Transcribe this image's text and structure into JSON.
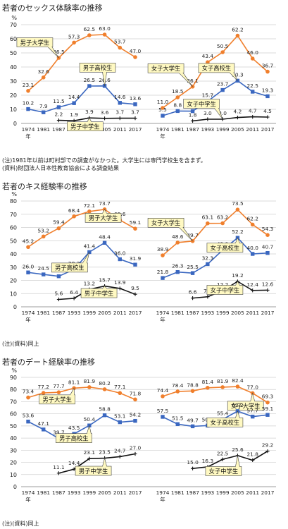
{
  "page": {
    "titles": [
      "若者のセックス体験率の推移",
      "若者のキス経験率の推移",
      "若者のデート経験率の推移"
    ],
    "notes": [
      [
        "(注)1981年以前は町村部での調査がなかった。大学生には専門学校生を含まず。",
        "(資料)財団法人日本性教育協会による調査結果"
      ],
      [
        "(注)(資料)同上"
      ],
      [
        "(注)(資料)同上"
      ]
    ]
  },
  "chart_data": [
    {
      "type": "line",
      "title": "若者のセックス体験率の推移",
      "unit": "%",
      "x_suffix": "年",
      "ylim": [
        0,
        70
      ],
      "yticks": [
        0,
        10,
        20,
        30,
        40,
        50,
        60,
        70
      ],
      "x": [
        "1974",
        "1981",
        "1987",
        "1993",
        "1999",
        "2005",
        "2011",
        "2017"
      ],
      "panels": [
        {
          "series": [
            {
              "name": "男子大学生",
              "color": "#f07f2c",
              "marker": "circle",
              "values": [
                23.1,
                32.6,
                46.5,
                57.3,
                62.5,
                63.0,
                53.7,
                47.0
              ]
            },
            {
              "name": "男子高校生",
              "color": "#3a67c0",
              "marker": "square",
              "values": [
                10.2,
                7.9,
                11.5,
                14.4,
                26.5,
                26.6,
                14.6,
                13.6
              ]
            },
            {
              "name": "男子中学生",
              "color": "#111111",
              "marker": "plus",
              "values": [
                null,
                null,
                2.2,
                1.9,
                3.9,
                3.6,
                3.7,
                3.7
              ]
            }
          ]
        },
        {
          "series": [
            {
              "name": "女子大学生",
              "color": "#f07f2c",
              "marker": "circle",
              "values": [
                11.0,
                18.5,
                26.1,
                43.4,
                50.5,
                62.2,
                46.0,
                36.7
              ]
            },
            {
              "name": "女子高校生",
              "color": "#3a67c0",
              "marker": "square",
              "values": [
                5.5,
                8.8,
                8.7,
                15.7,
                23.7,
                30.3,
                22.5,
                19.3
              ]
            },
            {
              "name": "女子中学生",
              "color": "#111111",
              "marker": "plus",
              "values": [
                null,
                null,
                1.8,
                3.0,
                3.0,
                4.2,
                4.7,
                4.5
              ]
            }
          ]
        }
      ]
    },
    {
      "type": "line",
      "title": "若者のキス経験率の推移",
      "unit": "%",
      "x_suffix": "年",
      "ylim": [
        0,
        80
      ],
      "yticks": [
        0,
        10,
        20,
        30,
        40,
        50,
        60,
        70,
        80
      ],
      "x": [
        "1974",
        "1981",
        "1987",
        "1993",
        "1999",
        "2005",
        "2011",
        "2017"
      ],
      "panels": [
        {
          "series": [
            {
              "name": "男子大学生",
              "color": "#f07f2c",
              "marker": "circle",
              "values": [
                45.2,
                53.2,
                59.4,
                68.4,
                72.1,
                73.7,
                65.6,
                59.1
              ]
            },
            {
              "name": "男子高校生",
              "color": "#3a67c0",
              "marker": "square",
              "values": [
                26.0,
                24.5,
                23.1,
                28.3,
                41.4,
                48.4,
                36.0,
                31.9
              ]
            },
            {
              "name": "男子中学生",
              "color": "#111111",
              "marker": "plus",
              "values": [
                null,
                null,
                5.6,
                6.4,
                13.2,
                15.7,
                13.9,
                9.5
              ]
            }
          ]
        },
        {
          "series": [
            {
              "name": "女子大学生",
              "color": "#f07f2c",
              "marker": "circle",
              "values": [
                38.9,
                48.6,
                49.7,
                63.1,
                63.2,
                73.5,
                62.2,
                54.3
              ]
            },
            {
              "name": "女子高校生",
              "color": "#3a67c0",
              "marker": "square",
              "values": [
                21.8,
                26.3,
                25.5,
                32.3,
                42.9,
                52.2,
                40.0,
                40.7
              ]
            },
            {
              "name": "女子中学生",
              "color": "#111111",
              "marker": "plus",
              "values": [
                null,
                null,
                6.6,
                7.6,
                12.2,
                19.2,
                12.4,
                12.6
              ]
            }
          ]
        }
      ]
    },
    {
      "type": "line",
      "title": "若者のデート経験率の推移",
      "unit": "%",
      "x_suffix": "年",
      "ylim": [
        0,
        90
      ],
      "yticks": [
        0,
        10,
        20,
        30,
        40,
        50,
        60,
        70,
        80,
        90
      ],
      "x": [
        "1974",
        "1981",
        "1987",
        "1993",
        "1999",
        "2005",
        "2011",
        "2017"
      ],
      "panels": [
        {
          "series": [
            {
              "name": "男子大学生",
              "color": "#f07f2c",
              "marker": "circle",
              "values": [
                73.4,
                77.2,
                77.7,
                81.1,
                81.9,
                80.2,
                77.1,
                71.8
              ]
            },
            {
              "name": "男子高校生",
              "color": "#3a67c0",
              "marker": "square",
              "values": [
                53.6,
                47.1,
                39.7,
                43.5,
                50.4,
                58.8,
                53.1,
                54.2
              ]
            },
            {
              "name": "男子中学生",
              "color": "#111111",
              "marker": "plus",
              "values": [
                null,
                null,
                11.1,
                14.4,
                23.1,
                23.5,
                24.7,
                27.0
              ]
            }
          ]
        },
        {
          "series": [
            {
              "name": "女子大学生",
              "color": "#f07f2c",
              "marker": "circle",
              "values": [
                74.4,
                78.4,
                78.8,
                81.4,
                81.9,
                82.4,
                77.0,
                69.3
              ]
            },
            {
              "name": "女子高校生",
              "color": "#3a67c0",
              "marker": "square",
              "values": [
                57.5,
                51.5,
                49.7,
                50.3,
                55.4,
                62.2,
                57.7,
                59.1
              ]
            },
            {
              "name": "女子中学生",
              "color": "#111111",
              "marker": "plus",
              "values": [
                null,
                null,
                15.0,
                16.3,
                22.5,
                25.6,
                21.8,
                29.2
              ]
            }
          ]
        }
      ]
    }
  ]
}
